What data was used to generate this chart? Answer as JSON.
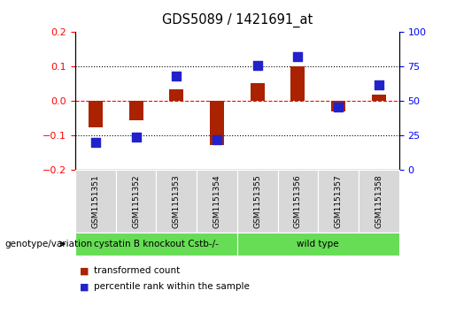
{
  "title": "GDS5089 / 1421691_at",
  "samples": [
    "GSM1151351",
    "GSM1151352",
    "GSM1151353",
    "GSM1151354",
    "GSM1151355",
    "GSM1151356",
    "GSM1151357",
    "GSM1151358"
  ],
  "transformed_count": [
    -0.075,
    -0.055,
    0.033,
    -0.127,
    0.052,
    0.102,
    -0.03,
    0.018
  ],
  "percentile_rank": [
    20,
    24,
    68,
    22,
    76,
    82,
    46,
    62
  ],
  "ylim_left": [
    -0.2,
    0.2
  ],
  "ylim_right": [
    0,
    100
  ],
  "yticks_left": [
    -0.2,
    -0.1,
    0.0,
    0.1,
    0.2
  ],
  "yticks_right": [
    0,
    25,
    50,
    75,
    100
  ],
  "group1_label": "cystatin B knockout Cstb-/-",
  "group2_label": "wild type",
  "bar_color": "#aa2200",
  "dot_color": "#2222cc",
  "plot_bg": "#ffffff",
  "legend_bar_label": "transformed count",
  "legend_dot_label": "percentile rank within the sample",
  "bar_width": 0.35,
  "dot_size": 50,
  "green_color": "#66dd55"
}
